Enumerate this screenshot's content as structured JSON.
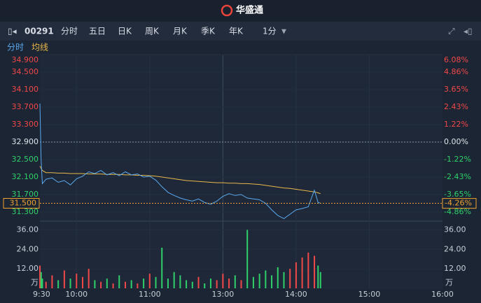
{
  "header": {
    "logo": "华盛通"
  },
  "toolbar": {
    "code": "00291",
    "tabs": [
      "分时",
      "五日",
      "日K",
      "周K",
      "月K",
      "季K",
      "年K"
    ],
    "active": 0,
    "period": "1分"
  },
  "chart_data": {
    "type": "line",
    "grid": true,
    "x": [
      0,
      1,
      2,
      5,
      10,
      15,
      20,
      25,
      30,
      35,
      40,
      45,
      50,
      55,
      60,
      65,
      70,
      75,
      80,
      85,
      90,
      95,
      100,
      105,
      110,
      115,
      120,
      125,
      130,
      135,
      140,
      145,
      150,
      155,
      160,
      165,
      170,
      175,
      180,
      185,
      190,
      195,
      200,
      205,
      210,
      215,
      220,
      225,
      228,
      230
    ],
    "xlim": [
      0,
      330
    ],
    "xticks": [
      {
        "value": 0,
        "label": "9:30"
      },
      {
        "value": 30,
        "label": "10:00"
      },
      {
        "value": 90,
        "label": "11:00"
      },
      {
        "value": 150,
        "label": "13:00"
      },
      {
        "value": 210,
        "label": "14:00"
      },
      {
        "value": 270,
        "label": "15:00"
      },
      {
        "value": 330,
        "label": "16:00"
      }
    ],
    "ylim": [
      31.1,
      34.9
    ],
    "yticks": [
      {
        "value": 34.9,
        "label": "34.900"
      },
      {
        "value": 34.5,
        "label": "34.500"
      },
      {
        "value": 34.1,
        "label": "34.100"
      },
      {
        "value": 33.7,
        "label": "33.700"
      },
      {
        "value": 33.3,
        "label": "33.300"
      },
      {
        "value": 32.9,
        "label": "32.900"
      },
      {
        "value": 32.5,
        "label": "32.500"
      },
      {
        "value": 32.1,
        "label": "32.100"
      },
      {
        "value": 31.7,
        "label": "31.700"
      },
      {
        "value": 31.3,
        "label": "31.300"
      }
    ],
    "y2lim": [
      -5.47,
      6.08
    ],
    "y2ticks": [
      {
        "value": 6.08,
        "label": "6.08%"
      },
      {
        "value": 4.86,
        "label": "4.86%"
      },
      {
        "value": 3.65,
        "label": "3.65%"
      },
      {
        "value": 2.43,
        "label": "2.43%"
      },
      {
        "value": 1.22,
        "label": "1.22%"
      },
      {
        "value": 0,
        "label": "0.00%"
      },
      {
        "value": -1.22,
        "label": "-1.22%"
      },
      {
        "value": -2.43,
        "label": "-2.43%"
      },
      {
        "value": -3.65,
        "label": "-3.65%"
      },
      {
        "value": -4.86,
        "label": "-4.86%"
      }
    ],
    "up_color": "#f04848",
    "down_color": "#2fd06a",
    "last_price": {
      "value": 31.5,
      "label": "31.500"
    },
    "last_change": {
      "value": -4.26,
      "label": "-4.26%"
    },
    "series": [
      {
        "name": "分时",
        "color": "#5aaaf0",
        "values": [
          33.78,
          32.5,
          31.95,
          32.05,
          32.08,
          31.98,
          32.02,
          31.92,
          32.06,
          32.12,
          32.22,
          32.18,
          32.25,
          32.15,
          32.2,
          32.13,
          32.22,
          32.15,
          32.17,
          32.1,
          32.12,
          32.03,
          31.88,
          31.75,
          31.68,
          31.62,
          31.58,
          31.55,
          31.6,
          31.52,
          31.48,
          31.55,
          31.66,
          31.72,
          31.68,
          31.7,
          31.62,
          31.6,
          31.58,
          31.5,
          31.35,
          31.22,
          31.15,
          31.25,
          31.35,
          31.38,
          31.42,
          31.8,
          31.52,
          31.5
        ]
      },
      {
        "name": "均线",
        "color": "#e8b84a",
        "values": [
          32.35,
          32.3,
          32.25,
          32.2,
          32.2,
          32.19,
          32.19,
          32.18,
          32.18,
          32.18,
          32.17,
          32.17,
          32.17,
          32.16,
          32.16,
          32.16,
          32.15,
          32.15,
          32.14,
          32.14,
          32.13,
          32.12,
          32.1,
          32.08,
          32.06,
          32.04,
          32.02,
          32.01,
          32.0,
          31.99,
          31.98,
          31.97,
          31.97,
          31.96,
          31.96,
          31.95,
          31.95,
          31.94,
          31.93,
          31.91,
          31.89,
          31.87,
          31.85,
          31.84,
          31.82,
          31.8,
          31.78,
          31.76,
          31.74,
          31.72
        ]
      }
    ],
    "volume": {
      "unit": "万",
      "ylim": [
        0,
        40.5
      ],
      "yticks": [
        {
          "value": 12,
          "label": "12.00"
        },
        {
          "value": 24,
          "label": "24.00"
        },
        {
          "value": 36,
          "label": "36.00"
        }
      ],
      "values": [
        14,
        10,
        6,
        4,
        8,
        5,
        11,
        6,
        9,
        7,
        12,
        5,
        4,
        6,
        3,
        8,
        4,
        5,
        3,
        6,
        9,
        7,
        25,
        6,
        10,
        8,
        5,
        4,
        7,
        3,
        6,
        5,
        9,
        6,
        8,
        5,
        36,
        7,
        9,
        11,
        8,
        13,
        10,
        12,
        16,
        19,
        22,
        20,
        14,
        10
      ]
    }
  }
}
